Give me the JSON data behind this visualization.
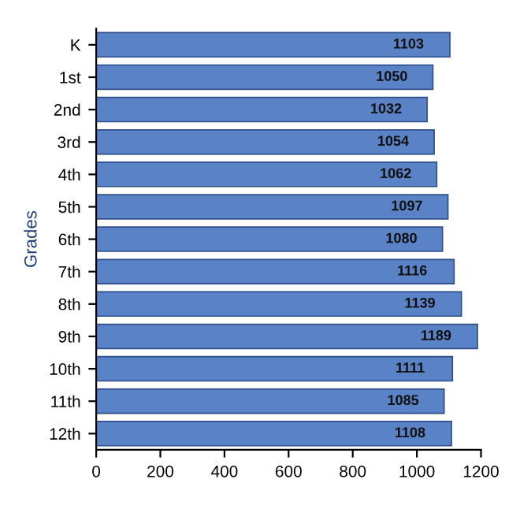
{
  "chart_data": {
    "type": "bar",
    "orientation": "horizontal",
    "ylabel": "Grades",
    "categories": [
      "K",
      "1st",
      "2nd",
      "3rd",
      "4th",
      "5th",
      "6th",
      "7th",
      "8th",
      "9th",
      "10th",
      "11th",
      "12th"
    ],
    "values": [
      1103,
      1050,
      1032,
      1054,
      1062,
      1097,
      1080,
      1116,
      1139,
      1189,
      1111,
      1085,
      1108
    ],
    "color": "#5a82c6",
    "xlim": [
      0,
      1200
    ],
    "xticks": [
      0,
      200,
      400,
      600,
      800,
      1000,
      1200
    ],
    "data_labels": true,
    "grid": false,
    "legend": false
  }
}
